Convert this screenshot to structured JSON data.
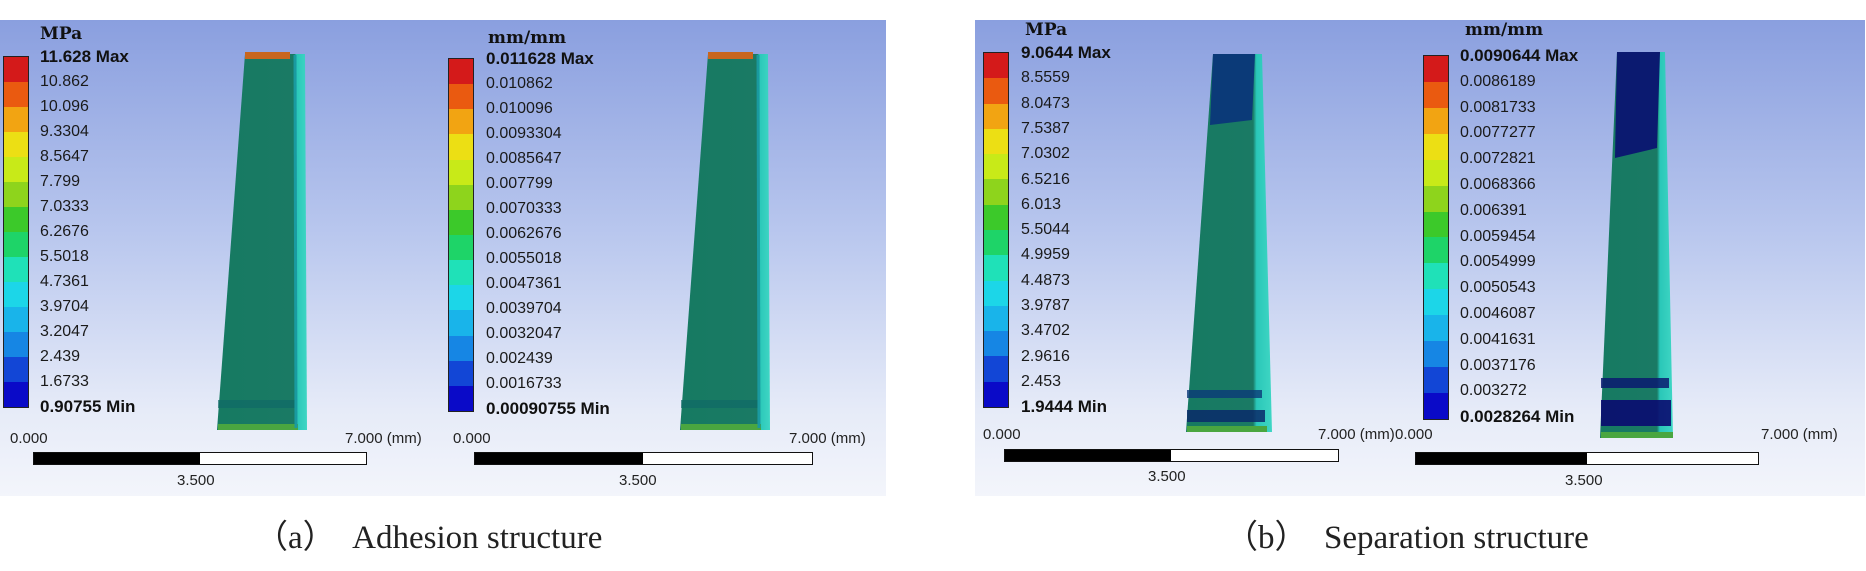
{
  "colorbar_colors": [
    "#d41a1a",
    "#ea5a10",
    "#f2a412",
    "#ecdf14",
    "#c8ea18",
    "#8ed41c",
    "#3cc92a",
    "#1ed468",
    "#1fe1b8",
    "#1cd6e8",
    "#19b4ea",
    "#1686e4",
    "#1246d6",
    "#0a0ac8"
  ],
  "scale_labels": {
    "start": "0.000",
    "end": "7.000 (mm)",
    "mid": "3.500"
  },
  "panels": [
    {
      "caption": "（a）  Adhesion structure",
      "stress": {
        "unit": "MPa",
        "labels": [
          "11.628 Max",
          "10.862",
          "10.096",
          "9.3304",
          "8.5647",
          "7.799",
          "7.0333",
          "6.2676",
          "5.5018",
          "4.7361",
          "3.9704",
          "3.2047",
          "2.439",
          "1.6733",
          "0.90755 Min"
        ]
      },
      "strain": {
        "unit": "mm/mm",
        "labels": [
          "0.011628 Max",
          "0.010862",
          "0.010096",
          "0.0093304",
          "0.0085647",
          "0.007799",
          "0.0070333",
          "0.0062676",
          "0.0055018",
          "0.0047361",
          "0.0039704",
          "0.0032047",
          "0.002439",
          "0.0016733",
          "0.00090755 Min"
        ]
      }
    },
    {
      "caption": "（b）  Separation structure",
      "stress": {
        "unit": "MPa",
        "labels": [
          "9.0644 Max",
          "8.5559",
          "8.0473",
          "7.5387",
          "7.0302",
          "6.5216",
          "6.013",
          "5.5044",
          "4.9959",
          "4.4873",
          "3.9787",
          "3.4702",
          "2.9616",
          "2.453",
          "1.9444 Min"
        ]
      },
      "strain": {
        "unit": "mm/mm",
        "labels": [
          "0.0090644 Max",
          "0.0086189",
          "0.0081733",
          "0.0077277",
          "0.0072821",
          "0.0068366",
          "0.006391",
          "0.0059454",
          "0.0054999",
          "0.0050543",
          "0.0046087",
          "0.0041631",
          "0.0037176",
          "0.003272",
          "0.0028264 Min"
        ]
      }
    }
  ]
}
